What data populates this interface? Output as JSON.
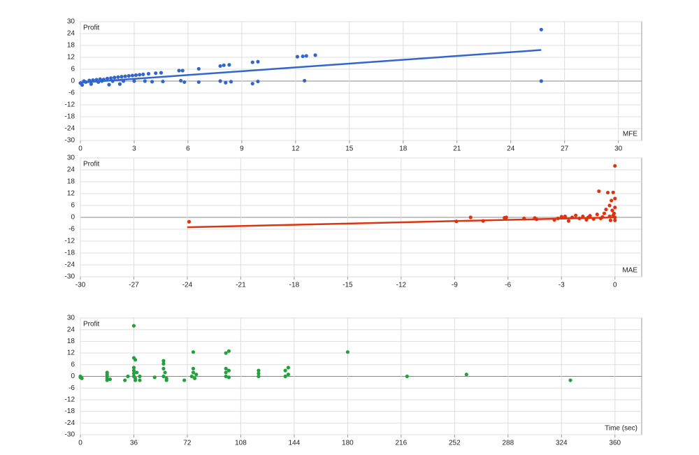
{
  "chart_data": [
    {
      "type": "scatter",
      "y_label": "Profit",
      "x_label": "MFE",
      "color": "#3366cc",
      "grid": true,
      "xlim": [
        0,
        31.3
      ],
      "ylim": [
        -30,
        30
      ],
      "xticks": [
        0,
        3,
        6,
        9,
        12,
        15,
        18,
        21,
        24,
        27,
        30
      ],
      "yticks": [
        30,
        24,
        18,
        12,
        6,
        0,
        -6,
        -12,
        -18,
        -24,
        -30
      ],
      "x": [
        0,
        0.1,
        0.2,
        0.3,
        0.5,
        0.7,
        0.9,
        1.1,
        1.3,
        1.5,
        1.7,
        1.9,
        2.1,
        2.3,
        2.5,
        2.7,
        2.9,
        3.1,
        3.3,
        3.5,
        3.8,
        4.2,
        4.5,
        0.6,
        1,
        1.6,
        2.2,
        1.2,
        1.8,
        2.4,
        3,
        3.6,
        4,
        4.6,
        5.5,
        5.7,
        5.6,
        5.8,
        6.6,
        6.6,
        7.8,
        8,
        8.3,
        7.8,
        8.1,
        8.4,
        9.6,
        9.9,
        9.6,
        9.9,
        12.1,
        12.4,
        12.6,
        13.1,
        12.5,
        25.7,
        25.7
      ],
      "values": [
        -1,
        -2,
        0,
        -0.5,
        0.3,
        0.5,
        0.7,
        1,
        0.8,
        1.3,
        1.5,
        1.8,
        2,
        2.2,
        2.4,
        2.6,
        2.8,
        3,
        3.2,
        3.4,
        3.7,
        4,
        4.2,
        -1.5,
        -0.5,
        -1.8,
        -1.5,
        0,
        0,
        0,
        0,
        0,
        -0.3,
        -0.2,
        5.3,
        5.3,
        0.2,
        -0.5,
        6.2,
        -0.5,
        7.6,
        8,
        8.2,
        0,
        -0.8,
        -0.3,
        9.5,
        9.8,
        -1.3,
        -0.2,
        12.3,
        12.5,
        12.7,
        13.1,
        0.2,
        26,
        0
      ],
      "trendline": {
        "x": [
          0,
          25.7
        ],
        "y": [
          -0.8,
          15.7
        ]
      }
    },
    {
      "type": "scatter",
      "y_label": "Profit",
      "x_label": "MAE",
      "color": "#dd3311",
      "grid": true,
      "xlim": [
        -30,
        1.5
      ],
      "ylim": [
        -30,
        30
      ],
      "xticks": [
        -30,
        -27,
        -24,
        -21,
        -18,
        -15,
        -12,
        -9,
        -6,
        -3,
        0
      ],
      "yticks": [
        30,
        24,
        18,
        12,
        6,
        0,
        -6,
        -12,
        -18,
        -24,
        -30
      ],
      "x": [
        -23.9,
        -8.9,
        -8.1,
        -7.4,
        -6.2,
        -6.1,
        -5.1,
        -4.5,
        -4.4,
        -3.4,
        -3.2,
        -3.0,
        -2.6,
        -2.4,
        -2.2,
        -2.0,
        -1.8,
        -1.6,
        -1.4,
        -1.2,
        -1.0,
        -0.9,
        -0.8,
        -0.6,
        -0.5,
        -0.4,
        -0.3,
        -0.25,
        -0.2,
        -0.15,
        -0.1,
        -0.05,
        0,
        0,
        0,
        0,
        0,
        -0.1,
        -0.3,
        -0.7,
        -1.5,
        -2.8
      ],
      "values": [
        -2.2,
        -2,
        0,
        -1.8,
        -0.2,
        0,
        -0.5,
        -0.3,
        -1,
        -1.3,
        -0.5,
        0.3,
        -1.8,
        0,
        1,
        -0.5,
        0.5,
        -1.2,
        0.8,
        -0.8,
        1.5,
        13.2,
        -0.5,
        2,
        4,
        12.5,
        6,
        -1.5,
        8.5,
        3.5,
        12.6,
        2,
        26,
        9.5,
        5,
        0,
        -1.5,
        1,
        0.5,
        0.2,
        0,
        0.5
      ],
      "trendline": {
        "x": [
          -24,
          0
        ],
        "y": [
          -5,
          0
        ]
      }
    },
    {
      "type": "scatter",
      "y_label": "Profit",
      "x_label": "Time (sec)",
      "color": "#22a03c",
      "grid": true,
      "xlim": [
        0,
        378
      ],
      "ylim": [
        -30,
        30
      ],
      "xticks": [
        0,
        36,
        72,
        108,
        144,
        180,
        216,
        252,
        288,
        324,
        360
      ],
      "yticks": [
        30,
        24,
        18,
        12,
        6,
        0,
        -6,
        -12,
        -18,
        -24,
        -30
      ],
      "x": [
        0,
        0,
        1,
        18,
        18,
        18,
        18,
        18,
        20,
        30,
        32,
        36,
        36,
        37,
        36,
        36,
        36,
        36,
        37,
        37,
        38,
        40,
        40,
        50,
        56,
        56,
        56,
        57,
        56,
        58,
        58,
        70,
        76,
        76,
        76,
        75,
        77,
        78,
        98,
        100,
        98,
        98,
        98,
        100,
        100,
        120,
        120,
        120,
        138,
        140,
        138,
        140,
        180,
        220,
        260,
        330
      ],
      "values": [
        -0.5,
        0,
        -1,
        -2,
        -1,
        0,
        1,
        2,
        -1.5,
        -2,
        0,
        26,
        9.5,
        8.5,
        4.5,
        3,
        1.5,
        0,
        -1,
        -2,
        2,
        -2,
        0,
        -0.5,
        8,
        6.5,
        4,
        2,
        0,
        -1,
        -2,
        -2,
        12.5,
        4,
        2,
        0,
        -1,
        1,
        12,
        13,
        4,
        2,
        0,
        -0.5,
        3,
        3,
        1.5,
        0,
        3,
        4.5,
        0,
        1,
        12.5,
        0,
        1,
        -2
      ]
    }
  ]
}
